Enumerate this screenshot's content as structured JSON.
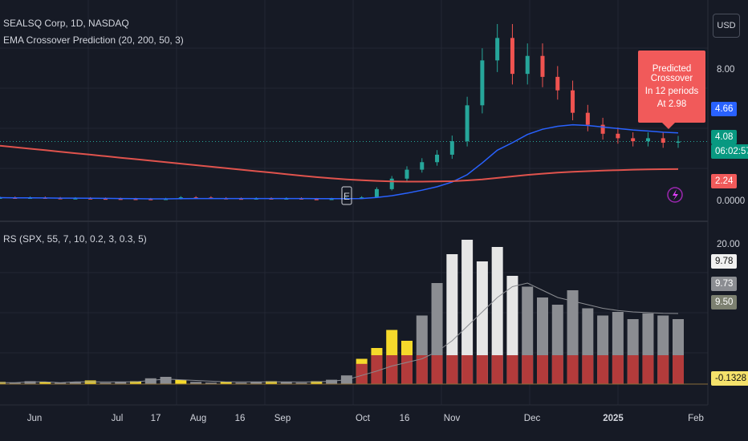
{
  "header": {
    "symbol_line": "SEALSQ Corp, 1D, NASDAQ",
    "indicator1": "EMA Crossover Prediction (20, 200, 50, 3)",
    "indicator2": "RS (SPX, 55, 7, 10, 0.2, 3, 0.3, 5)",
    "currency": "USD"
  },
  "callout": {
    "line1": "Predicted Crossover",
    "line2": "In 12 periods",
    "line3": "At 2.98"
  },
  "price_labels": {
    "ema_fast": "4.66",
    "last_price": "4.08",
    "countdown": "06:02:57",
    "ema_slow": "2.24",
    "axis_top": "8.00",
    "axis_bottom": "0.0000"
  },
  "rs_labels": {
    "max": "20.00",
    "v1": "9.78",
    "v2": "9.73",
    "v3": "9.50",
    "last": "-0.1328"
  },
  "earnings_marker": "E",
  "x_ticks": [
    "Jun",
    "Jul",
    "17",
    "Aug",
    "16",
    "Sep",
    "Oct",
    "16",
    "Nov",
    "Dec",
    "2025",
    "Feb"
  ],
  "colors": {
    "background": "#161a25",
    "up": "#26a69a",
    "down": "#ef5350",
    "ema_fast": "#2962ff",
    "ema_slow": "#e0534d",
    "rs_light": "#e6e6e6",
    "rs_gray": "#8b8d92",
    "rs_yellow": "#f5d92b",
    "rs_red": "#b33b3b"
  },
  "chart_data": [
    {
      "type": "line",
      "title": "SEALSQ Corp, 1D, NASDAQ",
      "x_ticks": [
        "Jun",
        "Jul",
        "17",
        "Aug",
        "16",
        "Sep",
        "Oct",
        "16",
        "Nov",
        "Dec",
        "2025",
        "Feb"
      ],
      "y_ticks": [
        0.0,
        8.0
      ],
      "ylim": [
        -0.5,
        13
      ],
      "series": [
        {
          "name": "Close",
          "values": [
            0.33,
            0.32,
            0.33,
            0.3,
            0.28,
            0.29,
            0.27,
            0.26,
            0.25,
            0.24,
            0.22,
            0.25,
            0.35,
            0.34,
            0.29,
            0.27,
            0.26,
            0.28,
            0.27,
            0.28,
            0.24,
            0.22,
            0.25,
            0.3,
            0.35,
            0.9,
            1.6,
            2.2,
            2.7,
            3.2,
            4.1,
            6.5,
            9.5,
            11.0,
            8.6,
            9.8,
            8.4,
            7.5,
            6.0,
            5.2,
            4.6,
            4.3,
            4.1,
            4.3,
            4.0,
            4.08
          ]
        },
        {
          "name": "EMA 20",
          "values": [
            0.33,
            0.32,
            0.32,
            0.31,
            0.3,
            0.3,
            0.29,
            0.28,
            0.27,
            0.26,
            0.25,
            0.25,
            0.26,
            0.27,
            0.27,
            0.27,
            0.27,
            0.27,
            0.27,
            0.27,
            0.27,
            0.26,
            0.26,
            0.26,
            0.27,
            0.34,
            0.46,
            0.63,
            0.83,
            1.06,
            1.37,
            1.86,
            2.65,
            3.5,
            4.0,
            4.55,
            4.9,
            5.1,
            5.2,
            5.15,
            5.05,
            4.95,
            4.85,
            4.78,
            4.7,
            4.66
          ]
        },
        {
          "name": "EMA 200",
          "values": [
            3.8,
            3.7,
            3.6,
            3.5,
            3.4,
            3.3,
            3.2,
            3.1,
            3.0,
            2.9,
            2.8,
            2.7,
            2.6,
            2.5,
            2.4,
            2.3,
            2.2,
            2.1,
            2.0,
            1.9,
            1.8,
            1.7,
            1.62,
            1.55,
            1.5,
            1.45,
            1.42,
            1.4,
            1.4,
            1.41,
            1.43,
            1.48,
            1.55,
            1.65,
            1.75,
            1.85,
            1.93,
            2.0,
            2.06,
            2.1,
            2.14,
            2.17,
            2.2,
            2.22,
            2.23,
            2.24
          ]
        }
      ],
      "annotation": "Predicted Crossover In 12 periods At 2.98"
    },
    {
      "type": "bar",
      "title": "RS (SPX, 55, 7, 10, 0.2, 3, 0.3, 5)",
      "ylim": [
        -1,
        21
      ],
      "series": [
        {
          "name": "RS",
          "values": [
            0.3,
            0.2,
            0.4,
            0.3,
            0.2,
            0.3,
            0.5,
            0.2,
            0.3,
            0.4,
            0.8,
            1.0,
            0.6,
            0.3,
            0.2,
            0.3,
            0.2,
            0.3,
            0.4,
            0.3,
            0.2,
            0.4,
            0.6,
            1.2,
            3.5,
            5.0,
            7.5,
            6.0,
            9.5,
            14.0,
            18.0,
            20.0,
            17.0,
            19.0,
            15.0,
            13.5,
            12.0,
            11.0,
            13.0,
            10.5,
            9.5,
            10.0,
            9.0,
            9.8,
            9.5,
            9.0
          ]
        },
        {
          "name": "RS line",
          "values": [
            0.2,
            0.2,
            0.3,
            0.3,
            0.2,
            0.3,
            0.3,
            0.3,
            0.3,
            0.3,
            0.5,
            0.7,
            0.6,
            0.5,
            0.4,
            0.3,
            0.3,
            0.3,
            0.3,
            0.3,
            0.3,
            0.3,
            0.4,
            0.6,
            1.2,
            1.8,
            2.5,
            3.0,
            3.5,
            4.5,
            6.0,
            8.0,
            10.0,
            12.0,
            13.5,
            14.0,
            13.0,
            12.0,
            11.5,
            11.0,
            10.5,
            10.2,
            10.0,
            9.9,
            9.8,
            9.78
          ]
        }
      ]
    }
  ]
}
